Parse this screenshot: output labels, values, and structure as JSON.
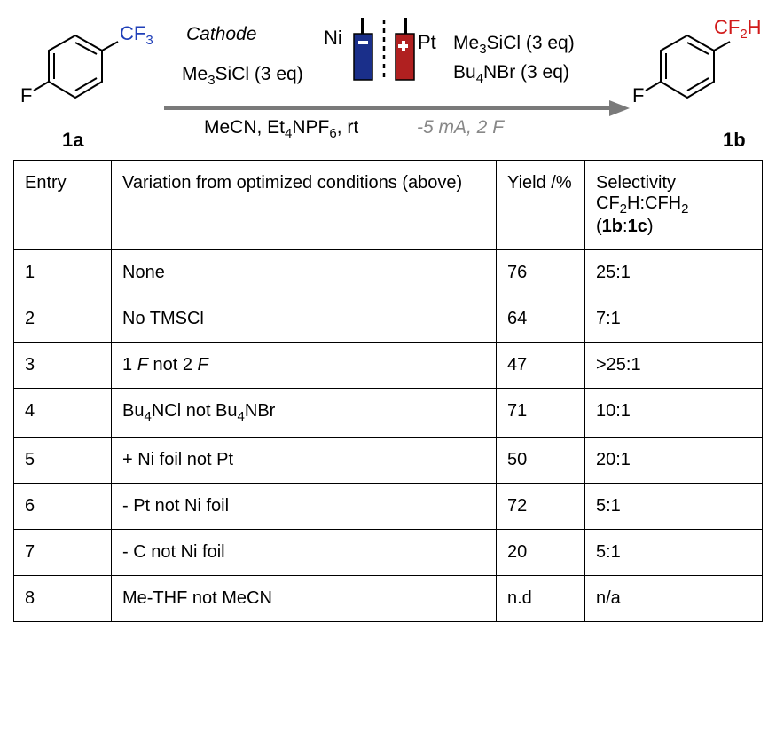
{
  "scheme": {
    "label_cf3": "CF",
    "label_cf3_sub": "3",
    "label_cf2h_a": "CF",
    "label_cf2h_sub": "2",
    "label_cf2h_b": "H",
    "label_f_left": "F",
    "label_f_right": "F",
    "compound_left": "1a",
    "compound_right": "1b",
    "cathode": "Cathode",
    "ni": "Ni",
    "pt": "Pt",
    "tmscl_left_a": "Me",
    "tmscl_left_b": "SiCl (3 eq)",
    "tmscl_right_a": "Me",
    "tmscl_right_b": "SiCl (3 eq)",
    "bu4nbr_a": "Bu",
    "bu4nbr_b": "NBr (3 eq)",
    "solvent_a": "MeCN, Et",
    "solvent_b": "NPF",
    "solvent_c": ", rt",
    "solvent_sub1": "4",
    "solvent_sub2": "6",
    "current": "-5 mA,  2 F",
    "colors": {
      "cf3": "#1f3fb8",
      "cf2h": "#d11a1a",
      "ni_electrode": "#1a2f8a",
      "pt_electrode": "#b02020",
      "arrow": "#7a7a7a",
      "conditions_grey": "#888"
    }
  },
  "table": {
    "headers": {
      "entry": "Entry",
      "variation": "Variation from optimized conditions (above)",
      "yield": "Yield /%",
      "selectivity_l1": "Selectivity",
      "selectivity_l2a": "CF",
      "selectivity_l2b": "H:CFH",
      "selectivity_sub": "2",
      "selectivity_l3a": "(",
      "selectivity_l3b": "1b",
      "selectivity_l3c": ":",
      "selectivity_l3d": "1c",
      "selectivity_l3e": ")"
    },
    "rows": [
      {
        "entry": "1",
        "variation_html": "None",
        "yield": "76",
        "selectivity": "25:1"
      },
      {
        "entry": "2",
        "variation_html": "No TMSCl",
        "yield": "64",
        "selectivity": "7:1"
      },
      {
        "entry": "3",
        "variation_html": "1 <i>F</i> not 2 <i>F</i>",
        "yield": "47",
        "selectivity": ">25:1"
      },
      {
        "entry": "4",
        "variation_html": "Bu<span class='sub'>4</span>NCl not Bu<span class='sub'>4</span>NBr",
        "yield": "71",
        "selectivity": "10:1"
      },
      {
        "entry": "5",
        "variation_html": "+ Ni foil not Pt",
        "yield": "50",
        "selectivity": "20:1"
      },
      {
        "entry": "6",
        "variation_html": "- Pt not Ni foil",
        "yield": "72",
        "selectivity": "5:1"
      },
      {
        "entry": "7",
        "variation_html": "- C not Ni foil",
        "yield": "20",
        "selectivity": "5:1"
      },
      {
        "entry": "8",
        "variation_html": "Me-THF not MeCN",
        "yield": "n.d",
        "selectivity": "n/a"
      }
    ]
  }
}
